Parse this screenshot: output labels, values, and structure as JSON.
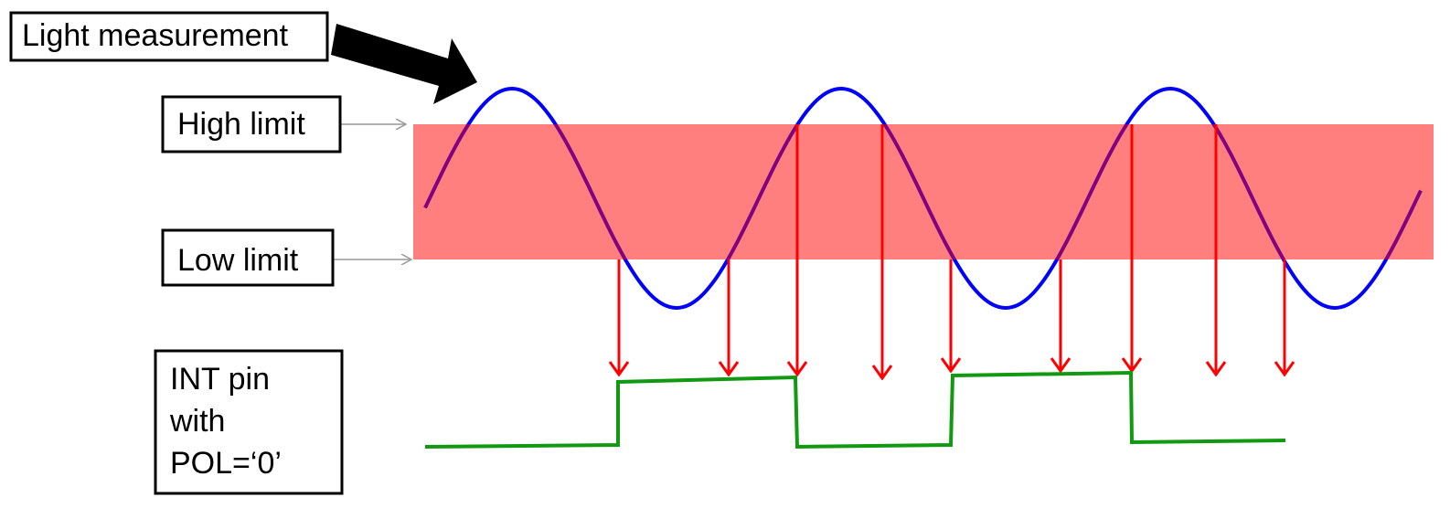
{
  "labels": {
    "light": "Light measurement",
    "high": "High limit",
    "low": "Low limit",
    "int": [
      "INT pin",
      "with",
      "POL=‘0’"
    ]
  }
}
